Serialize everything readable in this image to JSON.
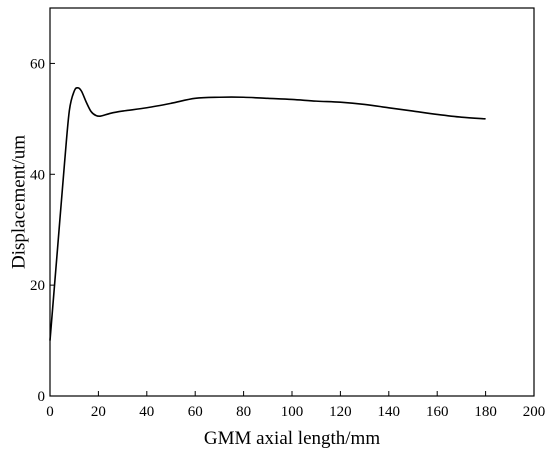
{
  "chart_data": {
    "type": "line",
    "title": "",
    "xlabel": "GMM axial length/mm",
    "ylabel": "Displacement/um",
    "xlim": [
      0,
      200
    ],
    "ylim": [
      0,
      70
    ],
    "xticks": [
      0,
      20,
      40,
      60,
      80,
      100,
      120,
      140,
      160,
      180,
      200
    ],
    "yticks": [
      0,
      20,
      40,
      60
    ],
    "grid": false,
    "legend": "none",
    "line_color": "#000000",
    "series": [
      {
        "x": [
          0,
          3,
          6,
          8,
          10,
          11.5,
          13,
          15,
          17,
          19,
          21,
          25,
          30,
          40,
          50,
          60,
          70,
          80,
          90,
          100,
          110,
          120,
          130,
          140,
          150,
          160,
          170,
          180
        ],
        "y": [
          10,
          26,
          42,
          51.5,
          55,
          55.6,
          55,
          53,
          51.3,
          50.6,
          50.5,
          51,
          51.4,
          52,
          52.8,
          53.7,
          53.9,
          53.9,
          53.7,
          53.5,
          53.2,
          53,
          52.6,
          52,
          51.4,
          50.8,
          50.3,
          50
        ]
      }
    ]
  }
}
